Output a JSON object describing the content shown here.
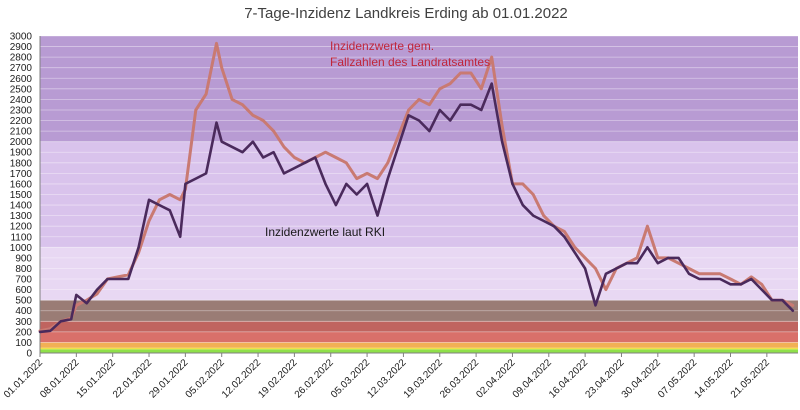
{
  "chart_data": {
    "type": "line",
    "title": "7-Tage-Inzidenz Landkreis Erding ab 01.01.2022",
    "ylim": [
      0,
      3000
    ],
    "yticks": [
      0,
      100,
      200,
      300,
      400,
      500,
      600,
      700,
      800,
      900,
      1000,
      1100,
      1200,
      1300,
      1400,
      1500,
      1600,
      1700,
      1800,
      1900,
      2000,
      2100,
      2200,
      2300,
      2400,
      2500,
      2600,
      2700,
      2800,
      2900,
      3000
    ],
    "xlim": [
      "01.01.2022",
      "27.05.2022"
    ],
    "xticks": [
      "01.01.2022",
      "08.01.2022",
      "15.01.2022",
      "22.01.2022",
      "29.01.2022",
      "05.02.2022",
      "12.02.2022",
      "19.02.2022",
      "26.02.2022",
      "05.03.2022",
      "12.03.2022",
      "19.03.2022",
      "26.03.2022",
      "02.04.2022",
      "09.04.2022",
      "16.04.2022",
      "23.04.2022",
      "30.04.2022",
      "07.05.2022",
      "14.05.2022",
      "21.05.2022"
    ],
    "grid": true,
    "bands": [
      {
        "from": 0,
        "to": 35,
        "color": "#8fe04a"
      },
      {
        "from": 35,
        "to": 50,
        "color": "#f0e24a"
      },
      {
        "from": 50,
        "to": 100,
        "color": "#f2b055"
      },
      {
        "from": 100,
        "to": 200,
        "color": "#d9706a"
      },
      {
        "from": 200,
        "to": 300,
        "color": "#c0645f"
      },
      {
        "from": 300,
        "to": 500,
        "color": "#9a7c75"
      },
      {
        "from": 500,
        "to": 1000,
        "color": "#e8d8f3"
      },
      {
        "from": 1000,
        "to": 2000,
        "color": "#d9c3ec"
      },
      {
        "from": 2000,
        "to": 3000,
        "color": "#b89bd3"
      }
    ],
    "series": [
      {
        "name": "Inzidenzwerte gem. Fallzahlen des Landratsamtes",
        "color": "#c97a72",
        "x": [
          "01.01.2022",
          "03.01.2022",
          "05.01.2022",
          "07.01.2022",
          "08.01.2022",
          "10.01.2022",
          "12.01.2022",
          "14.01.2022",
          "16.01.2022",
          "18.01.2022",
          "20.01.2022",
          "22.01.2022",
          "24.01.2022",
          "26.01.2022",
          "28.01.2022",
          "29.01.2022",
          "31.01.2022",
          "02.02.2022",
          "04.02.2022",
          "05.02.2022",
          "07.02.2022",
          "09.02.2022",
          "11.02.2022",
          "13.02.2022",
          "15.02.2022",
          "17.02.2022",
          "19.02.2022",
          "21.02.2022",
          "23.02.2022",
          "25.02.2022",
          "27.02.2022",
          "01.03.2022",
          "03.03.2022",
          "05.03.2022",
          "07.03.2022",
          "09.03.2022",
          "11.03.2022",
          "13.03.2022",
          "15.03.2022",
          "17.03.2022",
          "19.03.2022",
          "21.03.2022",
          "23.03.2022",
          "25.03.2022",
          "27.03.2022",
          "29.03.2022",
          "31.03.2022",
          "02.04.2022",
          "04.04.2022",
          "06.04.2022",
          "08.04.2022",
          "10.04.2022",
          "12.04.2022",
          "14.04.2022",
          "16.04.2022",
          "18.04.2022",
          "20.04.2022",
          "22.04.2022",
          "24.04.2022",
          "26.04.2022",
          "28.04.2022",
          "30.04.2022",
          "02.05.2022",
          "04.05.2022",
          "06.05.2022",
          "08.05.2022",
          "10.05.2022",
          "12.05.2022",
          "14.05.2022",
          "16.05.2022",
          "18.05.2022",
          "20.05.2022",
          "22.05.2022",
          "24.05.2022",
          "26.05.2022"
        ],
        "values": [
          210,
          230,
          300,
          330,
          450,
          500,
          560,
          700,
          720,
          740,
          950,
          1250,
          1450,
          1500,
          1450,
          1550,
          2300,
          2450,
          2930,
          2700,
          2400,
          2350,
          2250,
          2200,
          2100,
          1950,
          1850,
          1800,
          1850,
          1900,
          1850,
          1800,
          1650,
          1700,
          1650,
          1800,
          2050,
          2300,
          2400,
          2350,
          2500,
          2550,
          2650,
          2650,
          2500,
          2800,
          2150,
          1600,
          1600,
          1500,
          1300,
          1200,
          1150,
          1000,
          900,
          800,
          600,
          800,
          850,
          900,
          1200,
          900,
          900,
          850,
          800,
          750,
          750,
          750,
          700,
          650,
          720,
          650,
          500,
          500,
          450
        ]
      },
      {
        "name": "Inzidenzwerte laut RKI",
        "color": "#4a2a5c",
        "x": [
          "01.01.2022",
          "03.01.2022",
          "05.01.2022",
          "07.01.2022",
          "08.01.2022",
          "10.01.2022",
          "12.01.2022",
          "14.01.2022",
          "16.01.2022",
          "18.01.2022",
          "20.01.2022",
          "22.01.2022",
          "24.01.2022",
          "26.01.2022",
          "28.01.2022",
          "29.01.2022",
          "31.01.2022",
          "02.02.2022",
          "04.02.2022",
          "05.02.2022",
          "07.02.2022",
          "09.02.2022",
          "11.02.2022",
          "13.02.2022",
          "15.02.2022",
          "17.02.2022",
          "19.02.2022",
          "21.02.2022",
          "23.02.2022",
          "25.02.2022",
          "27.02.2022",
          "01.03.2022",
          "03.03.2022",
          "05.03.2022",
          "07.03.2022",
          "09.03.2022",
          "11.03.2022",
          "13.03.2022",
          "15.03.2022",
          "17.03.2022",
          "19.03.2022",
          "21.03.2022",
          "23.03.2022",
          "25.03.2022",
          "27.03.2022",
          "29.03.2022",
          "31.03.2022",
          "02.04.2022",
          "04.04.2022",
          "06.04.2022",
          "08.04.2022",
          "10.04.2022",
          "12.04.2022",
          "14.04.2022",
          "16.04.2022",
          "18.04.2022",
          "20.04.2022",
          "22.04.2022",
          "24.04.2022",
          "26.04.2022",
          "28.04.2022",
          "30.04.2022",
          "02.05.2022",
          "04.05.2022",
          "06.05.2022",
          "08.05.2022",
          "10.05.2022",
          "12.05.2022",
          "14.05.2022",
          "16.05.2022",
          "18.05.2022",
          "20.05.2022",
          "22.05.2022",
          "24.05.2022",
          "26.05.2022"
        ],
        "values": [
          200,
          210,
          300,
          320,
          550,
          470,
          600,
          700,
          700,
          700,
          1000,
          1450,
          1400,
          1350,
          1100,
          1600,
          1650,
          1700,
          2180,
          2000,
          1950,
          1900,
          2000,
          1850,
          1900,
          1700,
          1750,
          1800,
          1850,
          1600,
          1400,
          1600,
          1500,
          1600,
          1300,
          1650,
          1950,
          2250,
          2200,
          2100,
          2300,
          2200,
          2350,
          2350,
          2300,
          2550,
          2000,
          1600,
          1400,
          1300,
          1250,
          1200,
          1100,
          950,
          800,
          450,
          750,
          800,
          850,
          850,
          1000,
          850,
          900,
          900,
          750,
          700,
          700,
          700,
          650,
          650,
          700,
          600,
          500,
          500,
          400
        ]
      }
    ],
    "annotations": [
      {
        "text": "Inzidenzwerte gem.",
        "color": "#c0263a"
      },
      {
        "text": "Fallzahlen des Landratsamtes",
        "color": "#c0263a"
      },
      {
        "text": "Inzidenzwerte laut RKI",
        "color": "#1a1a1a"
      }
    ]
  }
}
